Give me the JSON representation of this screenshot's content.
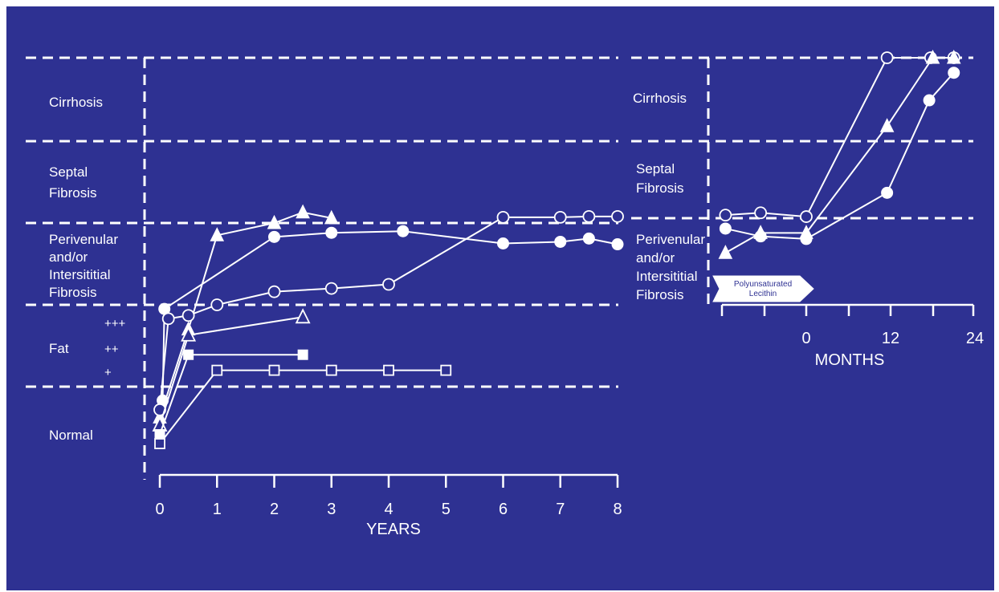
{
  "colors": {
    "background": "#2e3192",
    "foreground": "#ffffff"
  },
  "chart_data": [
    {
      "type": "line",
      "xlabel": "YEARS",
      "xlim": [
        0,
        8
      ],
      "x_ticks": [
        "0",
        "1",
        "2",
        "3",
        "4",
        "5",
        "6",
        "7",
        "8"
      ],
      "y_categories": [
        "Normal",
        "Fat",
        "Perivenular and/or Intersititial Fibrosis",
        "Septal Fibrosis",
        "Cirrhosis"
      ],
      "category_labels": {
        "cirrhosis": "Cirrhosis",
        "septal_1": "Septal",
        "septal_2": "Fibrosis",
        "peri_1": "Perivenular",
        "peri_2": "and/or",
        "peri_3": "Intersititial",
        "peri_4": "Fibrosis",
        "fat": "Fat",
        "normal": "Normal"
      },
      "fat_grades": [
        "+++",
        "++",
        "+"
      ],
      "series": [
        {
          "marker": "triangle-filled",
          "points": [
            [
              0,
              0.6
            ],
            [
              0.5,
              1.7
            ],
            [
              1,
              2.85
            ],
            [
              2,
              3.0
            ],
            [
              2.5,
              3.13
            ],
            [
              3,
              3.06
            ]
          ]
        },
        {
          "marker": "circle-filled",
          "points": [
            [
              0.05,
              0.82
            ],
            [
              0.08,
              1.95
            ],
            [
              2,
              2.83
            ],
            [
              3,
              2.88
            ],
            [
              4.25,
              2.9
            ],
            [
              6,
              2.75
            ],
            [
              7,
              2.77
            ],
            [
              7.5,
              2.81
            ],
            [
              8,
              2.74
            ]
          ]
        },
        {
          "marker": "circle-open",
          "points": [
            [
              0,
              0.7
            ],
            [
              0.15,
              1.83
            ],
            [
              0.5,
              1.87
            ],
            [
              1,
              2.0
            ],
            [
              2,
              2.16
            ],
            [
              3,
              2.2
            ],
            [
              4,
              2.25
            ],
            [
              6,
              3.07
            ],
            [
              7,
              3.07
            ],
            [
              7.5,
              3.08
            ],
            [
              8,
              3.08
            ]
          ]
        },
        {
          "marker": "triangle-open",
          "points": [
            [
              0,
              0.5
            ],
            [
              0.5,
              1.63
            ],
            [
              2.5,
              1.85
            ]
          ]
        },
        {
          "marker": "square-filled",
          "points": [
            [
              0,
              0.38
            ],
            [
              0.5,
              1.39
            ],
            [
              2.5,
              1.39
            ]
          ]
        },
        {
          "marker": "square-open",
          "points": [
            [
              0,
              0.26
            ],
            [
              1,
              1.2
            ],
            [
              2,
              1.2
            ],
            [
              3,
              1.2
            ],
            [
              4,
              1.2
            ],
            [
              5,
              1.2
            ]
          ]
        }
      ]
    },
    {
      "type": "line",
      "xlabel": "MONTHS",
      "x_ticks": [
        "0",
        "12",
        "24"
      ],
      "x_tick_values": [
        0,
        12,
        24
      ],
      "xlim": [
        -12,
        24
      ],
      "y_categories": [
        "Perivenular and/or Intersititial Fibrosis",
        "Septal Fibrosis",
        "Cirrhosis"
      ],
      "category_labels": {
        "cirrhosis": "Cirrhosis",
        "septal_1": "Septal",
        "septal_2": "Fibrosis",
        "peri_1": "Perivenular",
        "peri_2": "and/or",
        "peri_3": "Intersititial",
        "peri_4": "Fibrosis"
      },
      "annotation": {
        "line1": "Polyunsaturated",
        "line2": "Lecithin",
        "start": -12,
        "end": 0
      },
      "series": [
        {
          "marker": "circle-open",
          "points": [
            [
              -11.5,
              3.04
            ],
            [
              -6.5,
              3.07
            ],
            [
              0,
              3.02
            ],
            [
              11.5,
              5.11
            ],
            [
              17.7,
              5.12
            ],
            [
              21,
              5.12
            ]
          ]
        },
        {
          "marker": "triangle-filled",
          "points": [
            [
              -11.5,
              2.6
            ],
            [
              -6.5,
              2.83
            ],
            [
              0,
              2.83
            ],
            [
              11.5,
              4.18
            ],
            [
              18,
              5.03
            ],
            [
              21,
              5.03
            ]
          ]
        },
        {
          "marker": "circle-filled",
          "points": [
            [
              -11.5,
              2.88
            ],
            [
              -6.5,
              2.79
            ],
            [
              0,
              2.76
            ],
            [
              11.5,
              3.33
            ],
            [
              17.5,
              4.49
            ],
            [
              21,
              4.82
            ]
          ]
        }
      ]
    }
  ]
}
